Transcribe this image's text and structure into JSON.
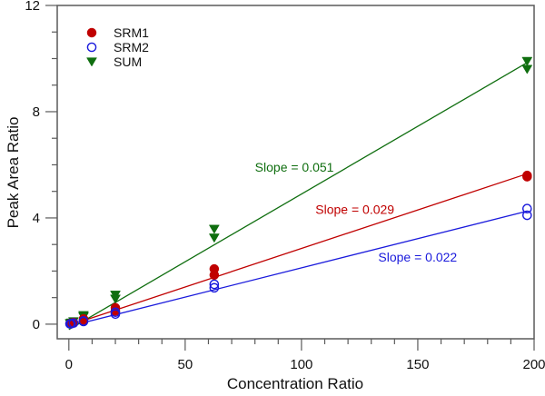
{
  "chart_data": {
    "type": "scatter",
    "title": "",
    "xlabel": "Concentration Ratio",
    "ylabel": "Peak Area Ratio",
    "xlim": [
      -5,
      200
    ],
    "ylim": [
      -0.55,
      12
    ],
    "x_ticks": [
      0,
      50,
      100,
      150,
      200
    ],
    "x_minor_step": 10,
    "y_ticks": [
      0,
      4,
      8,
      12
    ],
    "y_minor_step": 1,
    "grid": false,
    "legend_position": "top-left",
    "series": [
      {
        "name": "SRM1",
        "color": "#c00000",
        "marker": "filled-circle",
        "points": [
          {
            "x": 0.5,
            "y": 0.02
          },
          {
            "x": 1,
            "y": 0.03
          },
          {
            "x": 2,
            "y": 0.06
          },
          {
            "x": 6.3,
            "y": 0.2
          },
          {
            "x": 6.3,
            "y": 0.15
          },
          {
            "x": 20,
            "y": 0.62
          },
          {
            "x": 20,
            "y": 0.5
          },
          {
            "x": 62.5,
            "y": 2.08
          },
          {
            "x": 62.5,
            "y": 1.85
          },
          {
            "x": 197,
            "y": 5.6
          },
          {
            "x": 197,
            "y": 5.55
          }
        ],
        "fit": {
          "slope": 0.029,
          "intercept": -0.05,
          "x_range": [
            0,
            197
          ]
        },
        "slope_label": "Slope = 0.029"
      },
      {
        "name": "SRM2",
        "color": "#1a1adc",
        "marker": "open-circle",
        "points": [
          {
            "x": 0.5,
            "y": 0.01
          },
          {
            "x": 1,
            "y": 0.02
          },
          {
            "x": 2,
            "y": 0.04
          },
          {
            "x": 6.3,
            "y": 0.12
          },
          {
            "x": 6.3,
            "y": 0.1
          },
          {
            "x": 20,
            "y": 0.45
          },
          {
            "x": 20,
            "y": 0.38
          },
          {
            "x": 62.5,
            "y": 1.5
          },
          {
            "x": 62.5,
            "y": 1.37
          },
          {
            "x": 197,
            "y": 4.35
          },
          {
            "x": 197,
            "y": 4.1
          }
        ],
        "fit": {
          "slope": 0.022,
          "intercept": -0.08,
          "x_range": [
            0,
            197
          ]
        },
        "slope_label": "Slope = 0.022"
      },
      {
        "name": "SUM",
        "color": "#0f6e0f",
        "marker": "filled-triangle-down",
        "points": [
          {
            "x": 0.5,
            "y": 0.03
          },
          {
            "x": 1,
            "y": 0.05
          },
          {
            "x": 2,
            "y": 0.1
          },
          {
            "x": 6.3,
            "y": 0.33
          },
          {
            "x": 6.3,
            "y": 0.28
          },
          {
            "x": 20,
            "y": 1.1
          },
          {
            "x": 20,
            "y": 0.95
          },
          {
            "x": 62.5,
            "y": 3.58
          },
          {
            "x": 62.5,
            "y": 3.25
          },
          {
            "x": 197,
            "y": 9.9
          },
          {
            "x": 197,
            "y": 9.6
          }
        ],
        "fit": {
          "slope": 0.051,
          "intercept": -0.2,
          "x_range": [
            0,
            197
          ]
        },
        "slope_label": "Slope = 0.051"
      }
    ],
    "annotations": [
      {
        "text": "Slope = 0.051",
        "series": "SUM",
        "x": 80,
        "y": 5.75
      },
      {
        "text": "Slope = 0.029",
        "series": "SRM1",
        "x": 106,
        "y": 4.15
      },
      {
        "text": "Slope = 0.022",
        "series": "SRM2",
        "x": 133,
        "y": 2.35
      }
    ]
  }
}
